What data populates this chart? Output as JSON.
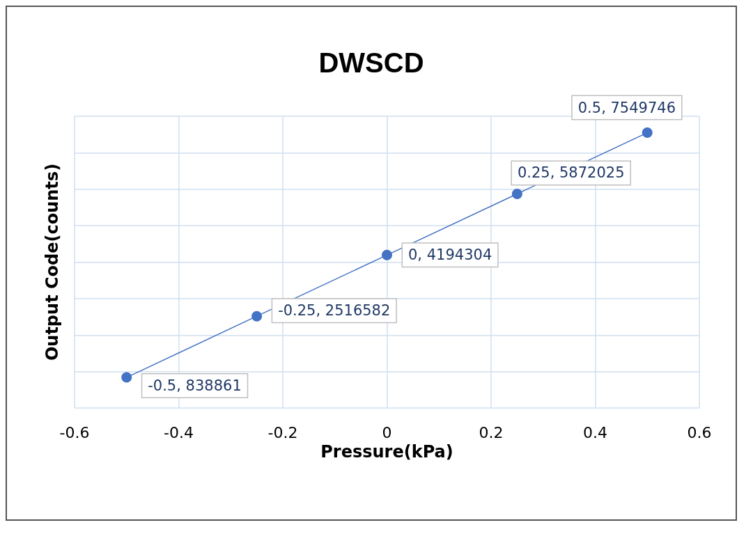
{
  "chart_data": {
    "type": "line",
    "title": "DWSCD",
    "xlabel": "Pressure(kPa)",
    "ylabel": "Output Code(counts)",
    "x": [
      -0.5,
      -0.25,
      0,
      0.25,
      0.5
    ],
    "values": [
      838861,
      2516582,
      4194304,
      5872025,
      7549746
    ],
    "value_labels": [
      "-0.5, 838861",
      "-0.25, 2516582",
      "0, 4194304",
      "0.25, 5872025",
      "0.5, 7549746"
    ],
    "color": "#4472c4",
    "marker": "circle",
    "line_style": "solid",
    "grid": true,
    "tick_labels": "x",
    "xlim": [
      -0.6,
      0.6
    ],
    "xticks": [
      -0.6,
      -0.4,
      -0.2,
      0,
      0.2,
      0.4,
      0.6
    ],
    "ylim": [
      0,
      8000000
    ],
    "yticks": [
      {
        "value": 0,
        "label": null
      },
      {
        "value": 1000000,
        "label": null
      },
      {
        "value": 2000000,
        "label": null
      },
      {
        "value": 3000000,
        "label": null
      },
      {
        "value": 4000000,
        "label": null
      },
      {
        "value": 5000000,
        "label": null
      },
      {
        "value": 6000000,
        "label": null
      },
      {
        "value": 7000000,
        "label": null
      },
      {
        "value": 8000000,
        "label": null
      }
    ]
  }
}
